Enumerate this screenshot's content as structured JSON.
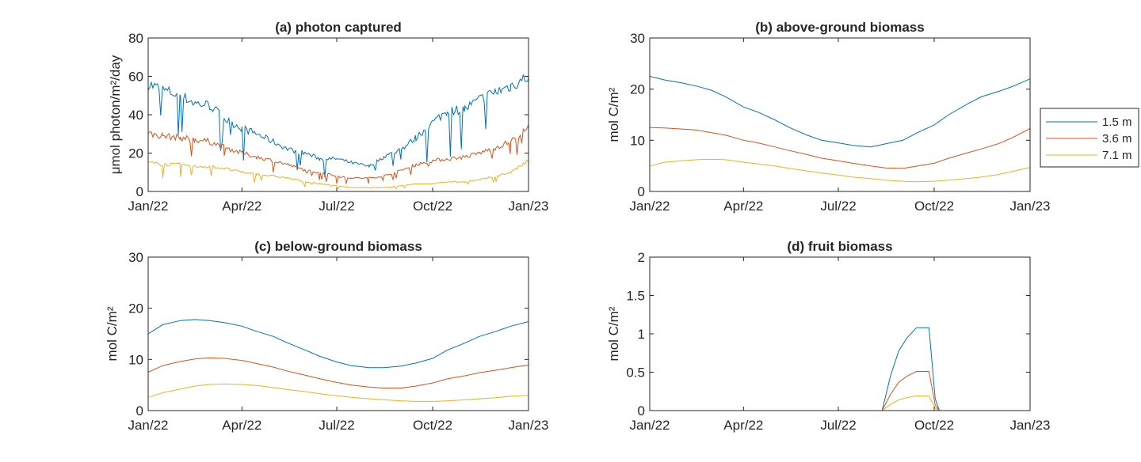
{
  "chart_data": [
    {
      "type": "line",
      "title": "(a) photon captured",
      "ylabel": "μmol photon/m²/day",
      "ylim": [
        0,
        80
      ],
      "yticks": [
        0,
        20,
        40,
        60,
        80
      ],
      "xlim": [
        "2022-01-01",
        "2023-01-01"
      ],
      "xticks": [
        {
          "date": "2022-01-01",
          "label": "Jan/22"
        },
        {
          "date": "2022-04-01",
          "label": "Apr/22"
        },
        {
          "date": "2022-07-01",
          "label": "Jul/22"
        },
        {
          "date": "2022-10-01",
          "label": "Oct/22"
        },
        {
          "date": "2023-01-01",
          "label": "Jan/23"
        }
      ],
      "x": [
        "2022-01-01",
        "2022-01-15",
        "2022-02-01",
        "2022-02-15",
        "2022-03-01",
        "2022-03-15",
        "2022-04-01",
        "2022-04-15",
        "2022-05-01",
        "2022-05-15",
        "2022-06-01",
        "2022-06-15",
        "2022-07-01",
        "2022-07-15",
        "2022-08-01",
        "2022-08-15",
        "2022-09-01",
        "2022-09-15",
        "2022-10-01",
        "2022-10-15",
        "2022-11-01",
        "2022-11-15",
        "2022-12-01",
        "2022-12-15",
        "2023-01-01"
      ],
      "series": [
        {
          "name": "1.5 m",
          "values": [
            56,
            53,
            50,
            46,
            45,
            38,
            33,
            30,
            26,
            22,
            20,
            17,
            17,
            15,
            13,
            18,
            22,
            28,
            36,
            42,
            43,
            48,
            52,
            55,
            60
          ]
        },
        {
          "name": "3.6 m",
          "values": [
            30,
            29,
            28,
            27,
            26,
            23,
            20,
            18,
            16,
            14,
            11,
            10,
            8,
            7,
            7,
            8,
            11,
            14,
            16,
            17,
            18,
            20,
            23,
            26,
            33
          ]
        },
        {
          "name": "7.1 m",
          "values": [
            15,
            14,
            14,
            13,
            13,
            12,
            10,
            9,
            8,
            7,
            5,
            4,
            3,
            2,
            2,
            2,
            3,
            4,
            4,
            5,
            5,
            6,
            8,
            10,
            16
          ]
        }
      ]
    },
    {
      "type": "line",
      "title": "(b) above-ground biomass",
      "ylabel": "mol C/m²",
      "ylim": [
        0,
        30
      ],
      "yticks": [
        0,
        10,
        20,
        30
      ],
      "xlim": [
        "2022-01-01",
        "2023-01-01"
      ],
      "xticks": [
        {
          "date": "2022-01-01",
          "label": "Jan/22"
        },
        {
          "date": "2022-04-01",
          "label": "Apr/22"
        },
        {
          "date": "2022-07-01",
          "label": "Jul/22"
        },
        {
          "date": "2022-10-01",
          "label": "Oct/22"
        },
        {
          "date": "2023-01-01",
          "label": "Jan/23"
        }
      ],
      "x": [
        "2022-01-01",
        "2022-01-15",
        "2022-02-01",
        "2022-02-15",
        "2022-03-01",
        "2022-03-15",
        "2022-04-01",
        "2022-04-15",
        "2022-05-01",
        "2022-05-15",
        "2022-06-01",
        "2022-06-15",
        "2022-07-01",
        "2022-07-15",
        "2022-08-01",
        "2022-08-15",
        "2022-09-01",
        "2022-09-15",
        "2022-10-01",
        "2022-10-15",
        "2022-11-01",
        "2022-11-15",
        "2022-12-01",
        "2022-12-15",
        "2023-01-01"
      ],
      "series": [
        {
          "name": "1.5 m",
          "values": [
            22.5,
            21.8,
            21.2,
            20.6,
            19.8,
            18.5,
            16.5,
            15.5,
            14,
            12.5,
            11,
            10,
            9.5,
            9,
            8.7,
            9.3,
            10,
            11.5,
            13,
            15,
            17,
            18.5,
            19.5,
            20.5,
            22
          ]
        },
        {
          "name": "3.6 m",
          "values": [
            12.5,
            12.4,
            12.2,
            12,
            11.5,
            11,
            10,
            9.5,
            8.7,
            8,
            7.2,
            6.5,
            6,
            5.5,
            5,
            4.6,
            4.5,
            5,
            5.5,
            6.5,
            7.5,
            8.3,
            9.3,
            10.5,
            12.3
          ]
        },
        {
          "name": "7.1 m",
          "values": [
            5,
            5.7,
            6,
            6.2,
            6.3,
            6.2,
            5.7,
            5.4,
            5,
            4.5,
            4,
            3.6,
            3.2,
            2.8,
            2.5,
            2.2,
            2,
            1.9,
            2,
            2.2,
            2.5,
            2.8,
            3.3,
            3.9,
            4.7
          ]
        }
      ],
      "legend": {
        "placement": "outside-right",
        "entries": [
          "1.5 m",
          "3.6 m",
          "7.1 m"
        ]
      }
    },
    {
      "type": "line",
      "title": "(c) below-ground biomass",
      "ylabel": "mol C/m²",
      "ylim": [
        0,
        30
      ],
      "yticks": [
        0,
        10,
        20,
        30
      ],
      "xlim": [
        "2022-01-01",
        "2023-01-01"
      ],
      "xticks": [
        {
          "date": "2022-01-01",
          "label": "Jan/22"
        },
        {
          "date": "2022-04-01",
          "label": "Apr/22"
        },
        {
          "date": "2022-07-01",
          "label": "Jul/22"
        },
        {
          "date": "2022-10-01",
          "label": "Oct/22"
        },
        {
          "date": "2023-01-01",
          "label": "Jan/23"
        }
      ],
      "x": [
        "2022-01-01",
        "2022-01-15",
        "2022-02-01",
        "2022-02-15",
        "2022-03-01",
        "2022-03-15",
        "2022-04-01",
        "2022-04-15",
        "2022-05-01",
        "2022-05-15",
        "2022-06-01",
        "2022-06-15",
        "2022-07-01",
        "2022-07-15",
        "2022-08-01",
        "2022-08-15",
        "2022-09-01",
        "2022-09-15",
        "2022-10-01",
        "2022-10-15",
        "2022-11-01",
        "2022-11-15",
        "2022-12-01",
        "2022-12-15",
        "2023-01-01"
      ],
      "series": [
        {
          "name": "1.5 m",
          "values": [
            15,
            16.8,
            17.6,
            17.8,
            17.6,
            17.2,
            16.5,
            15.5,
            14.5,
            13.2,
            11.8,
            10.6,
            9.5,
            8.8,
            8.4,
            8.4,
            8.7,
            9.3,
            10.2,
            11.8,
            13.2,
            14.5,
            15.5,
            16.5,
            17.4
          ]
        },
        {
          "name": "3.6 m",
          "values": [
            7.5,
            8.8,
            9.6,
            10.1,
            10.3,
            10.2,
            9.8,
            9.2,
            8.5,
            7.7,
            6.9,
            6.2,
            5.5,
            5,
            4.6,
            4.4,
            4.4,
            4.8,
            5.4,
            6.2,
            6.8,
            7.4,
            7.9,
            8.4,
            8.9
          ]
        },
        {
          "name": "7.1 m",
          "values": [
            2.6,
            3.5,
            4.2,
            4.8,
            5.1,
            5.2,
            5.1,
            4.9,
            4.5,
            4.1,
            3.7,
            3.3,
            2.9,
            2.6,
            2.3,
            2.1,
            1.9,
            1.8,
            1.8,
            1.9,
            2.1,
            2.3,
            2.5,
            2.8,
            3.0
          ]
        }
      ]
    },
    {
      "type": "line",
      "title": "(d) fruit biomass",
      "ylabel": "mol C/m²",
      "ylim": [
        0,
        2
      ],
      "yticks": [
        0,
        0.5,
        1,
        1.5,
        2
      ],
      "xlim": [
        "2022-01-01",
        "2023-01-01"
      ],
      "xticks": [
        {
          "date": "2022-01-01",
          "label": "Jan/22"
        },
        {
          "date": "2022-04-01",
          "label": "Apr/22"
        },
        {
          "date": "2022-07-01",
          "label": "Jul/22"
        },
        {
          "date": "2022-10-01",
          "label": "Oct/22"
        },
        {
          "date": "2023-01-01",
          "label": "Jan/23"
        }
      ],
      "x": [
        "2022-01-01",
        "2022-08-12",
        "2022-08-20",
        "2022-08-28",
        "2022-09-05",
        "2022-09-14",
        "2022-09-26",
        "2022-10-02",
        "2022-10-06",
        "2023-01-01"
      ],
      "series": [
        {
          "name": "1.5 m",
          "values": [
            0,
            0,
            0.45,
            0.78,
            0.95,
            1.08,
            1.08,
            0.15,
            0,
            0
          ]
        },
        {
          "name": "3.6 m",
          "values": [
            0,
            0,
            0.21,
            0.37,
            0.45,
            0.51,
            0.51,
            0.07,
            0,
            0
          ]
        },
        {
          "name": "7.1 m",
          "values": [
            0,
            0,
            0.08,
            0.14,
            0.17,
            0.19,
            0.19,
            0.03,
            0,
            0
          ]
        }
      ]
    }
  ],
  "colors": {
    "1.5 m": "#0072BD",
    "3.6 m": "#D95319",
    "7.1 m": "#EDB120"
  }
}
